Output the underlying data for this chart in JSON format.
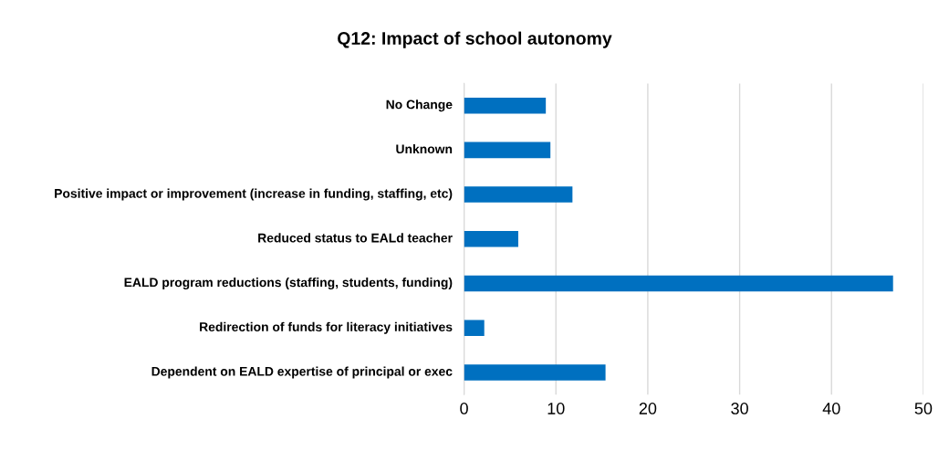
{
  "chart_data": {
    "type": "bar",
    "orientation": "horizontal",
    "title": "Q12: Impact of school autonomy",
    "categories": [
      "No Change",
      "Unknown",
      "Positive impact or improvement (increase in funding, staffing, etc)",
      "Reduced status to EALd teacher",
      "EALD program reductions (staffing, students, funding)",
      "Redirection of funds for literacy initiatives",
      "Dependent on EALD expertise of principal or exec"
    ],
    "values": [
      8.9,
      9.4,
      11.8,
      5.9,
      46.7,
      2.2,
      15.4
    ],
    "color": "#0070c0",
    "xlim": [
      0,
      50
    ],
    "xticks": [
      0,
      10,
      20,
      30,
      40,
      50
    ],
    "grid": "x"
  }
}
